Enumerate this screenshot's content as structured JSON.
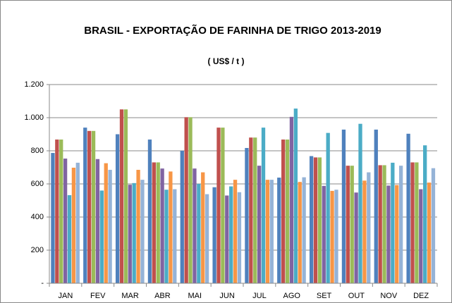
{
  "chart_data": {
    "type": "bar",
    "title": "BRASIL - EXPORTAÇÃO DE FARINHA DE TRIGO 2013-2019",
    "subtitle": "( US$ / t )",
    "categories": [
      "JAN",
      "FEV",
      "MAR",
      "ABR",
      "MAI",
      "JUN",
      "JUL",
      "AGO",
      "SET",
      "OUT",
      "NOV",
      "DEZ"
    ],
    "series": [
      {
        "color": "#4f81bd",
        "values": [
          787,
          940,
          900,
          868,
          800,
          580,
          817,
          638,
          768,
          928,
          928,
          903
        ]
      },
      {
        "color": "#c0504d",
        "values": [
          868,
          920,
          1050,
          730,
          1003,
          940,
          880,
          868,
          760,
          710,
          713,
          730
        ]
      },
      {
        "color": "#9bbb59",
        "values": [
          868,
          920,
          1050,
          730,
          1003,
          940,
          880,
          868,
          760,
          710,
          713,
          730
        ]
      },
      {
        "color": "#8064a2",
        "values": [
          753,
          750,
          595,
          693,
          693,
          530,
          710,
          1005,
          588,
          548,
          590,
          568
        ]
      },
      {
        "color": "#4bacc6",
        "values": [
          532,
          560,
          605,
          565,
          600,
          585,
          940,
          1055,
          908,
          963,
          728,
          833
        ]
      },
      {
        "color": "#f79646",
        "values": [
          698,
          725,
          685,
          675,
          670,
          625,
          625,
          612,
          558,
          620,
          593,
          608
        ]
      },
      {
        "color": "#95b3d7",
        "values": [
          728,
          685,
          625,
          568,
          538,
          550,
          625,
          640,
          565,
          670,
          710,
          695
        ]
      }
    ],
    "ylim": [
      0,
      1200
    ],
    "yticks": [
      {
        "value": 0,
        "label": "-"
      },
      200,
      400,
      600,
      800,
      {
        "value": 1000,
        "label": "1.000"
      },
      {
        "value": 1200,
        "label": "1.200"
      }
    ],
    "grid": true
  }
}
